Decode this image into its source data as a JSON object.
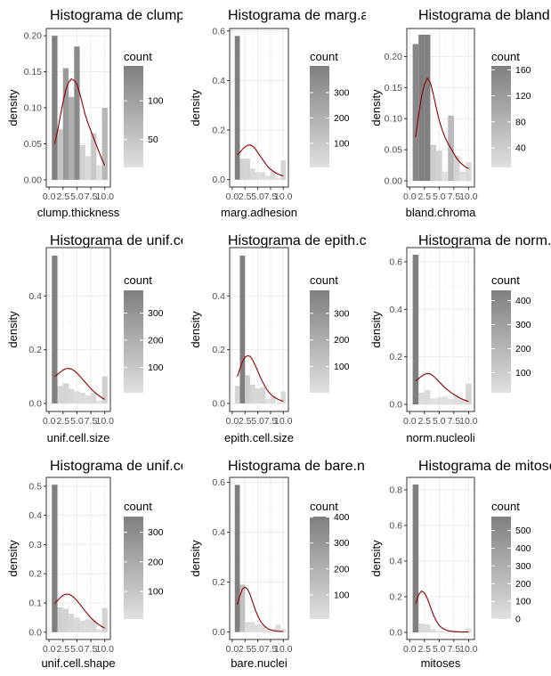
{
  "chart_data": [
    {
      "type": "bar",
      "title": "Histograma de clump.thickness",
      "xlabel": "clump.thickness",
      "ylabel": "density",
      "x_ticks": [
        0,
        2.5,
        5,
        7.5,
        10
      ],
      "x_tick_labels": [
        "0.0",
        "2.5",
        "5.0",
        "7.5",
        "10.0"
      ],
      "y_ticks": [
        0,
        0.05,
        0.1,
        0.15,
        0.2
      ],
      "y_tick_labels": [
        "0.00",
        "0.05",
        "0.10",
        "0.15",
        "0.20"
      ],
      "xlim": [
        -0.5,
        11
      ],
      "ylim": [
        -0.01,
        0.21
      ],
      "bins": [
        1,
        2,
        3,
        4,
        5,
        6,
        7,
        8,
        9,
        10
      ],
      "values": [
        0.2,
        0.07,
        0.155,
        0.115,
        0.185,
        0.048,
        0.033,
        0.065,
        0.02,
        0.1
      ],
      "counts": [
        145,
        50,
        108,
        80,
        130,
        34,
        23,
        46,
        14,
        69
      ],
      "density_line": {
        "x": [
          1,
          1.5,
          2,
          2.5,
          3,
          3.5,
          4,
          4.5,
          5,
          5.5,
          6,
          6.5,
          7,
          7.5,
          8,
          8.5,
          9,
          9.5,
          10
        ],
        "y": [
          0.05,
          0.067,
          0.088,
          0.108,
          0.125,
          0.135,
          0.14,
          0.138,
          0.133,
          0.12,
          0.105,
          0.09,
          0.078,
          0.068,
          0.058,
          0.048,
          0.038,
          0.028,
          0.02
        ]
      },
      "legend": {
        "title": "count",
        "ticks": [
          50,
          100
        ],
        "min": 14,
        "max": 145
      }
    },
    {
      "type": "bar",
      "title": "Histograma de marg.adhesion",
      "xlabel": "marg.adhesion",
      "ylabel": "density",
      "x_ticks": [
        0,
        2.5,
        5,
        7.5,
        10
      ],
      "x_tick_labels": [
        "0.0",
        "2.5",
        "5.0",
        "7.5",
        "10.0"
      ],
      "y_ticks": [
        0,
        0.2,
        0.4,
        0.6
      ],
      "y_tick_labels": [
        "0.0",
        "0.2",
        "0.4",
        "0.6"
      ],
      "xlim": [
        -0.5,
        11
      ],
      "ylim": [
        -0.03,
        0.61
      ],
      "bins": [
        1,
        2,
        3,
        4,
        5,
        6,
        7,
        8,
        9,
        10
      ],
      "values": [
        0.58,
        0.085,
        0.085,
        0.045,
        0.03,
        0.03,
        0.015,
        0.035,
        0.007,
        0.078
      ],
      "counts": [
        405,
        58,
        58,
        33,
        23,
        22,
        13,
        25,
        5,
        55
      ],
      "density_line": {
        "x": [
          1,
          1.5,
          2,
          2.5,
          3,
          3.5,
          4,
          4.5,
          5,
          5.5,
          6,
          6.5,
          7,
          7.5,
          8,
          8.5,
          9,
          9.5,
          10
        ],
        "y": [
          0.1,
          0.11,
          0.122,
          0.132,
          0.138,
          0.14,
          0.135,
          0.125,
          0.11,
          0.095,
          0.08,
          0.065,
          0.052,
          0.042,
          0.034,
          0.027,
          0.022,
          0.018,
          0.015
        ]
      },
      "legend": {
        "title": "count",
        "ticks": [
          100,
          200,
          300
        ],
        "min": 5,
        "max": 405
      }
    },
    {
      "type": "bar",
      "title": "Histograma de bland.chromatin",
      "xlabel": "bland.chroma",
      "ylabel": "density",
      "x_ticks": [
        0,
        2.5,
        5,
        7.5,
        10
      ],
      "x_tick_labels": [
        "0.0",
        "2.5",
        "5.0",
        "7.5",
        "10.0"
      ],
      "y_ticks": [
        0,
        0.05,
        0.1,
        0.15,
        0.2
      ],
      "y_tick_labels": [
        "0.00",
        "0.05",
        "0.10",
        "0.15",
        "0.20"
      ],
      "xlim": [
        -0.5,
        11
      ],
      "ylim": [
        -0.01,
        0.245
      ],
      "bins": [
        1,
        2,
        3,
        4,
        5,
        6,
        7,
        8,
        9,
        10
      ],
      "values": [
        0.22,
        0.235,
        0.235,
        0.058,
        0.048,
        0.015,
        0.105,
        0.04,
        0.015,
        0.03
      ],
      "counts": [
        152,
        166,
        165,
        40,
        34,
        10,
        73,
        28,
        11,
        20
      ],
      "density_line": {
        "x": [
          1,
          1.5,
          2,
          2.5,
          3,
          3.5,
          4,
          4.5,
          5,
          5.5,
          6,
          6.5,
          7,
          7.5,
          8,
          8.5,
          9,
          9.5,
          10
        ],
        "y": [
          0.07,
          0.105,
          0.135,
          0.155,
          0.165,
          0.158,
          0.14,
          0.118,
          0.098,
          0.082,
          0.07,
          0.06,
          0.052,
          0.044,
          0.036,
          0.03,
          0.026,
          0.022,
          0.02
        ]
      },
      "legend": {
        "title": "count",
        "ticks": [
          40,
          80,
          120,
          160
        ],
        "min": 10,
        "max": 166
      }
    },
    {
      "type": "bar",
      "title": "Histograma de unif.cell.size",
      "xlabel": "unif.cell.size",
      "ylabel": "density",
      "x_ticks": [
        0,
        2.5,
        5,
        7.5,
        10
      ],
      "x_tick_labels": [
        "0.0",
        "2.5",
        "5.0",
        "7.5",
        "10.0"
      ],
      "y_ticks": [
        0,
        0.2,
        0.4
      ],
      "y_tick_labels": [
        "0.0",
        "0.2",
        "0.4"
      ],
      "xlim": [
        -0.5,
        11
      ],
      "ylim": [
        -0.03,
        0.58
      ],
      "bins": [
        1,
        2,
        3,
        4,
        5,
        6,
        7,
        8,
        9,
        10
      ],
      "values": [
        0.55,
        0.065,
        0.075,
        0.055,
        0.045,
        0.04,
        0.03,
        0.04,
        0.01,
        0.1
      ],
      "counts": [
        384,
        45,
        52,
        40,
        30,
        27,
        19,
        29,
        6,
        67
      ],
      "density_line": {
        "x": [
          1,
          1.5,
          2,
          2.5,
          3,
          3.5,
          4,
          4.5,
          5,
          5.5,
          6,
          6.5,
          7,
          7.5,
          8,
          8.5,
          9,
          9.5,
          10
        ],
        "y": [
          0.1,
          0.108,
          0.116,
          0.124,
          0.129,
          0.13,
          0.128,
          0.122,
          0.113,
          0.102,
          0.09,
          0.078,
          0.066,
          0.055,
          0.045,
          0.036,
          0.028,
          0.021,
          0.015
        ]
      },
      "legend": {
        "title": "count",
        "ticks": [
          100,
          200,
          300
        ],
        "min": 6,
        "max": 384
      }
    },
    {
      "type": "bar",
      "title": "Histograma de epith.cell.size",
      "xlabel": "epith.cell.size",
      "ylabel": "density",
      "x_ticks": [
        0,
        2.5,
        5,
        7.5,
        10
      ],
      "x_tick_labels": [
        "0.0",
        "2.5",
        "5.0",
        "7.5",
        "10.0"
      ],
      "y_ticks": [
        0,
        0.2,
        0.4
      ],
      "y_tick_labels": [
        "0.0",
        "0.2",
        "0.4"
      ],
      "xlim": [
        -0.5,
        11
      ],
      "ylim": [
        -0.03,
        0.58
      ],
      "bins": [
        1,
        2,
        3,
        4,
        5,
        6,
        7,
        8,
        9,
        10
      ],
      "values": [
        0.065,
        0.55,
        0.105,
        0.07,
        0.055,
        0.06,
        0.017,
        0.028,
        0.003,
        0.045
      ],
      "counts": [
        47,
        386,
        72,
        48,
        39,
        41,
        12,
        21,
        2,
        31
      ],
      "density_line": {
        "x": [
          1,
          1.5,
          2,
          2.5,
          3,
          3.5,
          4,
          4.5,
          5,
          5.5,
          6,
          6.5,
          7,
          7.5,
          8,
          8.5,
          9,
          9.5,
          10
        ],
        "y": [
          0.1,
          0.128,
          0.155,
          0.172,
          0.178,
          0.175,
          0.162,
          0.142,
          0.12,
          0.098,
          0.078,
          0.06,
          0.046,
          0.035,
          0.026,
          0.02,
          0.015,
          0.011,
          0.008
        ]
      },
      "legend": {
        "title": "count",
        "ticks": [
          100,
          200,
          300
        ],
        "min": 2,
        "max": 386
      }
    },
    {
      "type": "bar",
      "title": "Histograma de norm.nucleoli",
      "xlabel": "norm.nucleoli",
      "ylabel": "density",
      "x_ticks": [
        0,
        2.5,
        5,
        7.5,
        10
      ],
      "x_tick_labels": [
        "0.0",
        "2.5",
        "5.0",
        "7.5",
        "10.0"
      ],
      "y_ticks": [
        0,
        0.2,
        0.4,
        0.6
      ],
      "y_tick_labels": [
        "0.0",
        "0.2",
        "0.4",
        "0.6"
      ],
      "xlim": [
        -0.5,
        11
      ],
      "ylim": [
        -0.03,
        0.66
      ],
      "bins": [
        1,
        2,
        3,
        4,
        5,
        6,
        7,
        8,
        9,
        10
      ],
      "values": [
        0.63,
        0.05,
        0.06,
        0.025,
        0.03,
        0.032,
        0.023,
        0.035,
        0.023,
        0.087
      ],
      "counts": [
        443,
        36,
        44,
        18,
        19,
        22,
        16,
        24,
        16,
        61
      ],
      "density_line": {
        "x": [
          1,
          1.5,
          2,
          2.5,
          3,
          3.5,
          4,
          4.5,
          5,
          5.5,
          6,
          6.5,
          7,
          7.5,
          8,
          8.5,
          9,
          9.5,
          10
        ],
        "y": [
          0.1,
          0.108,
          0.118,
          0.126,
          0.13,
          0.128,
          0.12,
          0.108,
          0.095,
          0.082,
          0.07,
          0.06,
          0.05,
          0.042,
          0.034,
          0.027,
          0.021,
          0.016,
          0.012
        ]
      },
      "legend": {
        "title": "count",
        "ticks": [
          100,
          200,
          300,
          400
        ],
        "min": 16,
        "max": 443
      }
    },
    {
      "type": "bar",
      "title": "Histograma de unif.cell.shape",
      "xlabel": "unif.cell.shape",
      "ylabel": "density",
      "x_ticks": [
        0,
        2.5,
        5,
        7.5,
        10
      ],
      "x_tick_labels": [
        "0.0",
        "2.5",
        "5.0",
        "7.5",
        "10.0"
      ],
      "y_ticks": [
        0,
        0.1,
        0.2,
        0.3,
        0.4,
        0.5
      ],
      "y_tick_labels": [
        "0.0",
        "0.1",
        "0.2",
        "0.3",
        "0.4",
        "0.5"
      ],
      "xlim": [
        -0.5,
        11
      ],
      "ylim": [
        -0.025,
        0.53
      ],
      "bins": [
        1,
        2,
        3,
        4,
        5,
        6,
        7,
        8,
        9,
        10
      ],
      "values": [
        0.505,
        0.085,
        0.08,
        0.063,
        0.05,
        0.04,
        0.045,
        0.04,
        0.01,
        0.083
      ],
      "counts": [
        353,
        59,
        56,
        44,
        34,
        30,
        30,
        28,
        7,
        58
      ],
      "density_line": {
        "x": [
          1,
          1.5,
          2,
          2.5,
          3,
          3.5,
          4,
          4.5,
          5,
          5.5,
          6,
          6.5,
          7,
          7.5,
          8,
          8.5,
          9,
          9.5,
          10
        ],
        "y": [
          0.098,
          0.108,
          0.118,
          0.126,
          0.13,
          0.13,
          0.126,
          0.118,
          0.108,
          0.096,
          0.084,
          0.072,
          0.06,
          0.049,
          0.04,
          0.032,
          0.025,
          0.019,
          0.014
        ]
      },
      "legend": {
        "title": "count",
        "ticks": [
          100,
          200,
          300
        ],
        "min": 7,
        "max": 353
      }
    },
    {
      "type": "bar",
      "title": "Histograma de bare.nuclei",
      "xlabel": "bare.nuclei",
      "ylabel": "density",
      "x_ticks": [
        0,
        2.5,
        5,
        7.5,
        10
      ],
      "x_tick_labels": [
        "0.0",
        "2.5",
        "5.0",
        "7.5",
        "10.0"
      ],
      "y_ticks": [
        0,
        0.2,
        0.4,
        0.6
      ],
      "y_tick_labels": [
        "0.0",
        "0.2",
        "0.4",
        "0.6"
      ],
      "xlim": [
        -0.5,
        11
      ],
      "ylim": [
        -0.03,
        0.62
      ],
      "bins": [
        1,
        2,
        3,
        4,
        5,
        6,
        7,
        8,
        9,
        10
      ],
      "values": [
        0.59,
        0.19,
        0.04,
        0.04,
        0.03,
        0.025,
        0.01,
        0.012,
        0.03,
        0.012
      ],
      "counts": [
        402,
        130,
        28,
        28,
        20,
        16,
        7,
        8,
        21,
        8
      ],
      "density_line": {
        "x": [
          1,
          1.5,
          2,
          2.5,
          3,
          3.5,
          4,
          4.5,
          5,
          5.5,
          6,
          6.5,
          7,
          7.5,
          8,
          8.5,
          9,
          9.5,
          10
        ],
        "y": [
          0.11,
          0.145,
          0.172,
          0.18,
          0.172,
          0.15,
          0.12,
          0.09,
          0.065,
          0.045,
          0.03,
          0.02,
          0.013,
          0.009,
          0.006,
          0.004,
          0.003,
          0.002,
          0.002
        ]
      },
      "legend": {
        "title": "count",
        "ticks": [
          100,
          200,
          300,
          400
        ],
        "min": 7,
        "max": 402
      }
    },
    {
      "type": "bar",
      "title": "Histograma de mitoses",
      "xlabel": "mitoses",
      "ylabel": "density",
      "x_ticks": [
        0,
        2.5,
        5,
        7.5,
        10
      ],
      "x_tick_labels": [
        "0.0",
        "2.5",
        "5.0",
        "7.5",
        "10.0"
      ],
      "y_ticks": [
        0,
        0.2,
        0.4,
        0.6,
        0.8
      ],
      "y_tick_labels": [
        "0.0",
        "0.2",
        "0.4",
        "0.6",
        "0.8"
      ],
      "xlim": [
        -0.5,
        11
      ],
      "ylim": [
        -0.04,
        0.87
      ],
      "bins": [
        1,
        2,
        3,
        4,
        5,
        6,
        7,
        8,
        9,
        10
      ],
      "values": [
        0.83,
        0.05,
        0.045,
        0.018,
        0.008,
        0.003,
        0.013,
        0.012,
        0.002,
        0.02
      ],
      "counts": [
        579,
        35,
        33,
        12,
        6,
        3,
        9,
        8,
        0,
        14
      ],
      "density_line": {
        "x": [
          1,
          1.5,
          2,
          2.5,
          3,
          3.5,
          4,
          4.5,
          5,
          5.5,
          6,
          6.5,
          7,
          7.5,
          8,
          8.5,
          9,
          9.5,
          10
        ],
        "y": [
          0.16,
          0.21,
          0.232,
          0.222,
          0.19,
          0.145,
          0.1,
          0.065,
          0.04,
          0.025,
          0.015,
          0.009,
          0.006,
          0.004,
          0.003,
          0.002,
          0.002,
          0.002,
          0.002
        ]
      },
      "legend": {
        "title": "count",
        "ticks": [
          0,
          100,
          200,
          300,
          400,
          500
        ],
        "min": 0,
        "max": 579
      }
    }
  ],
  "colors": {
    "panel_background": "#ffffff",
    "panel_border": "#333333",
    "grid_major": "#ebebeb",
    "grid_minor": "#f5f5f5",
    "count_low": "#e0e0e0",
    "count_high": "#7f7f7f",
    "density_line": "#8b0000"
  }
}
